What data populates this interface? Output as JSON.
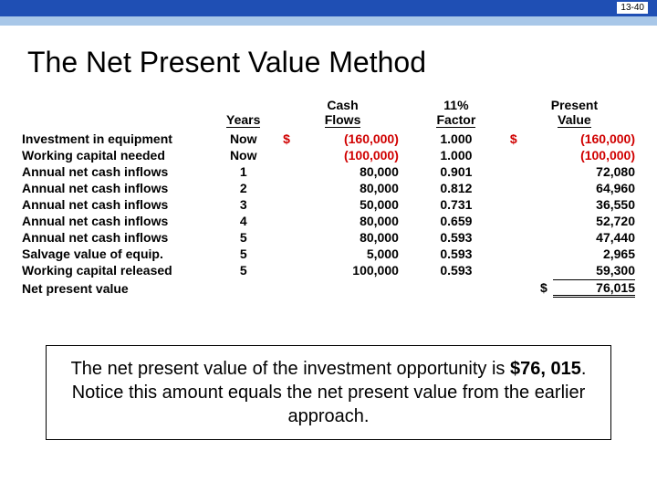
{
  "header": {
    "page_number": "13-40",
    "blue_color": "#1f4fb4",
    "light_color": "#a8c7e8"
  },
  "title": "The Net Present Value Method",
  "table": {
    "col_headers": {
      "years": "Years",
      "cash": "Cash Flows",
      "factor": "11% Factor",
      "pv": "Present Value"
    },
    "rows": [
      {
        "label": "Investment in equipment",
        "years": "Now",
        "cash": "(160,000)",
        "cash_neg": true,
        "cash_dollar": true,
        "factor": "1.000",
        "pv": "(160,000)",
        "pv_neg": true,
        "pv_dollar": true
      },
      {
        "label": "Working capital needed",
        "years": "Now",
        "cash": "(100,000)",
        "cash_neg": true,
        "cash_dollar": false,
        "factor": "1.000",
        "pv": "(100,000)",
        "pv_neg": true,
        "pv_dollar": false
      },
      {
        "label": "Annual net cash inflows",
        "years": "1",
        "cash": "80,000",
        "cash_neg": false,
        "cash_dollar": false,
        "factor": "0.901",
        "pv": "72,080",
        "pv_neg": false,
        "pv_dollar": false
      },
      {
        "label": "Annual net cash inflows",
        "years": "2",
        "cash": "80,000",
        "cash_neg": false,
        "cash_dollar": false,
        "factor": "0.812",
        "pv": "64,960",
        "pv_neg": false,
        "pv_dollar": false
      },
      {
        "label": "Annual net cash inflows",
        "years": "3",
        "cash": "50,000",
        "cash_neg": false,
        "cash_dollar": false,
        "factor": "0.731",
        "pv": "36,550",
        "pv_neg": false,
        "pv_dollar": false
      },
      {
        "label": "Annual net cash inflows",
        "years": "4",
        "cash": "80,000",
        "cash_neg": false,
        "cash_dollar": false,
        "factor": "0.659",
        "pv": "52,720",
        "pv_neg": false,
        "pv_dollar": false
      },
      {
        "label": "Annual net cash inflows",
        "years": "5",
        "cash": "80,000",
        "cash_neg": false,
        "cash_dollar": false,
        "factor": "0.593",
        "pv": "47,440",
        "pv_neg": false,
        "pv_dollar": false
      },
      {
        "label": "Salvage value of equip.",
        "years": "5",
        "cash": "5,000",
        "cash_neg": false,
        "cash_dollar": false,
        "factor": "0.593",
        "pv": "2,965",
        "pv_neg": false,
        "pv_dollar": false
      },
      {
        "label": "Working capital released",
        "years": "5",
        "cash": "100,000",
        "cash_neg": false,
        "cash_dollar": false,
        "factor": "0.593",
        "pv": "59,300",
        "pv_neg": false,
        "pv_dollar": false
      }
    ],
    "total": {
      "label": "Net present value",
      "pv": "76,015",
      "pv_dollar": true
    }
  },
  "callout": {
    "pre": "The net present value of the investment opportunity is ",
    "amount": "$76, 015",
    "post": ". Notice this amount equals the net present value from the earlier approach."
  }
}
